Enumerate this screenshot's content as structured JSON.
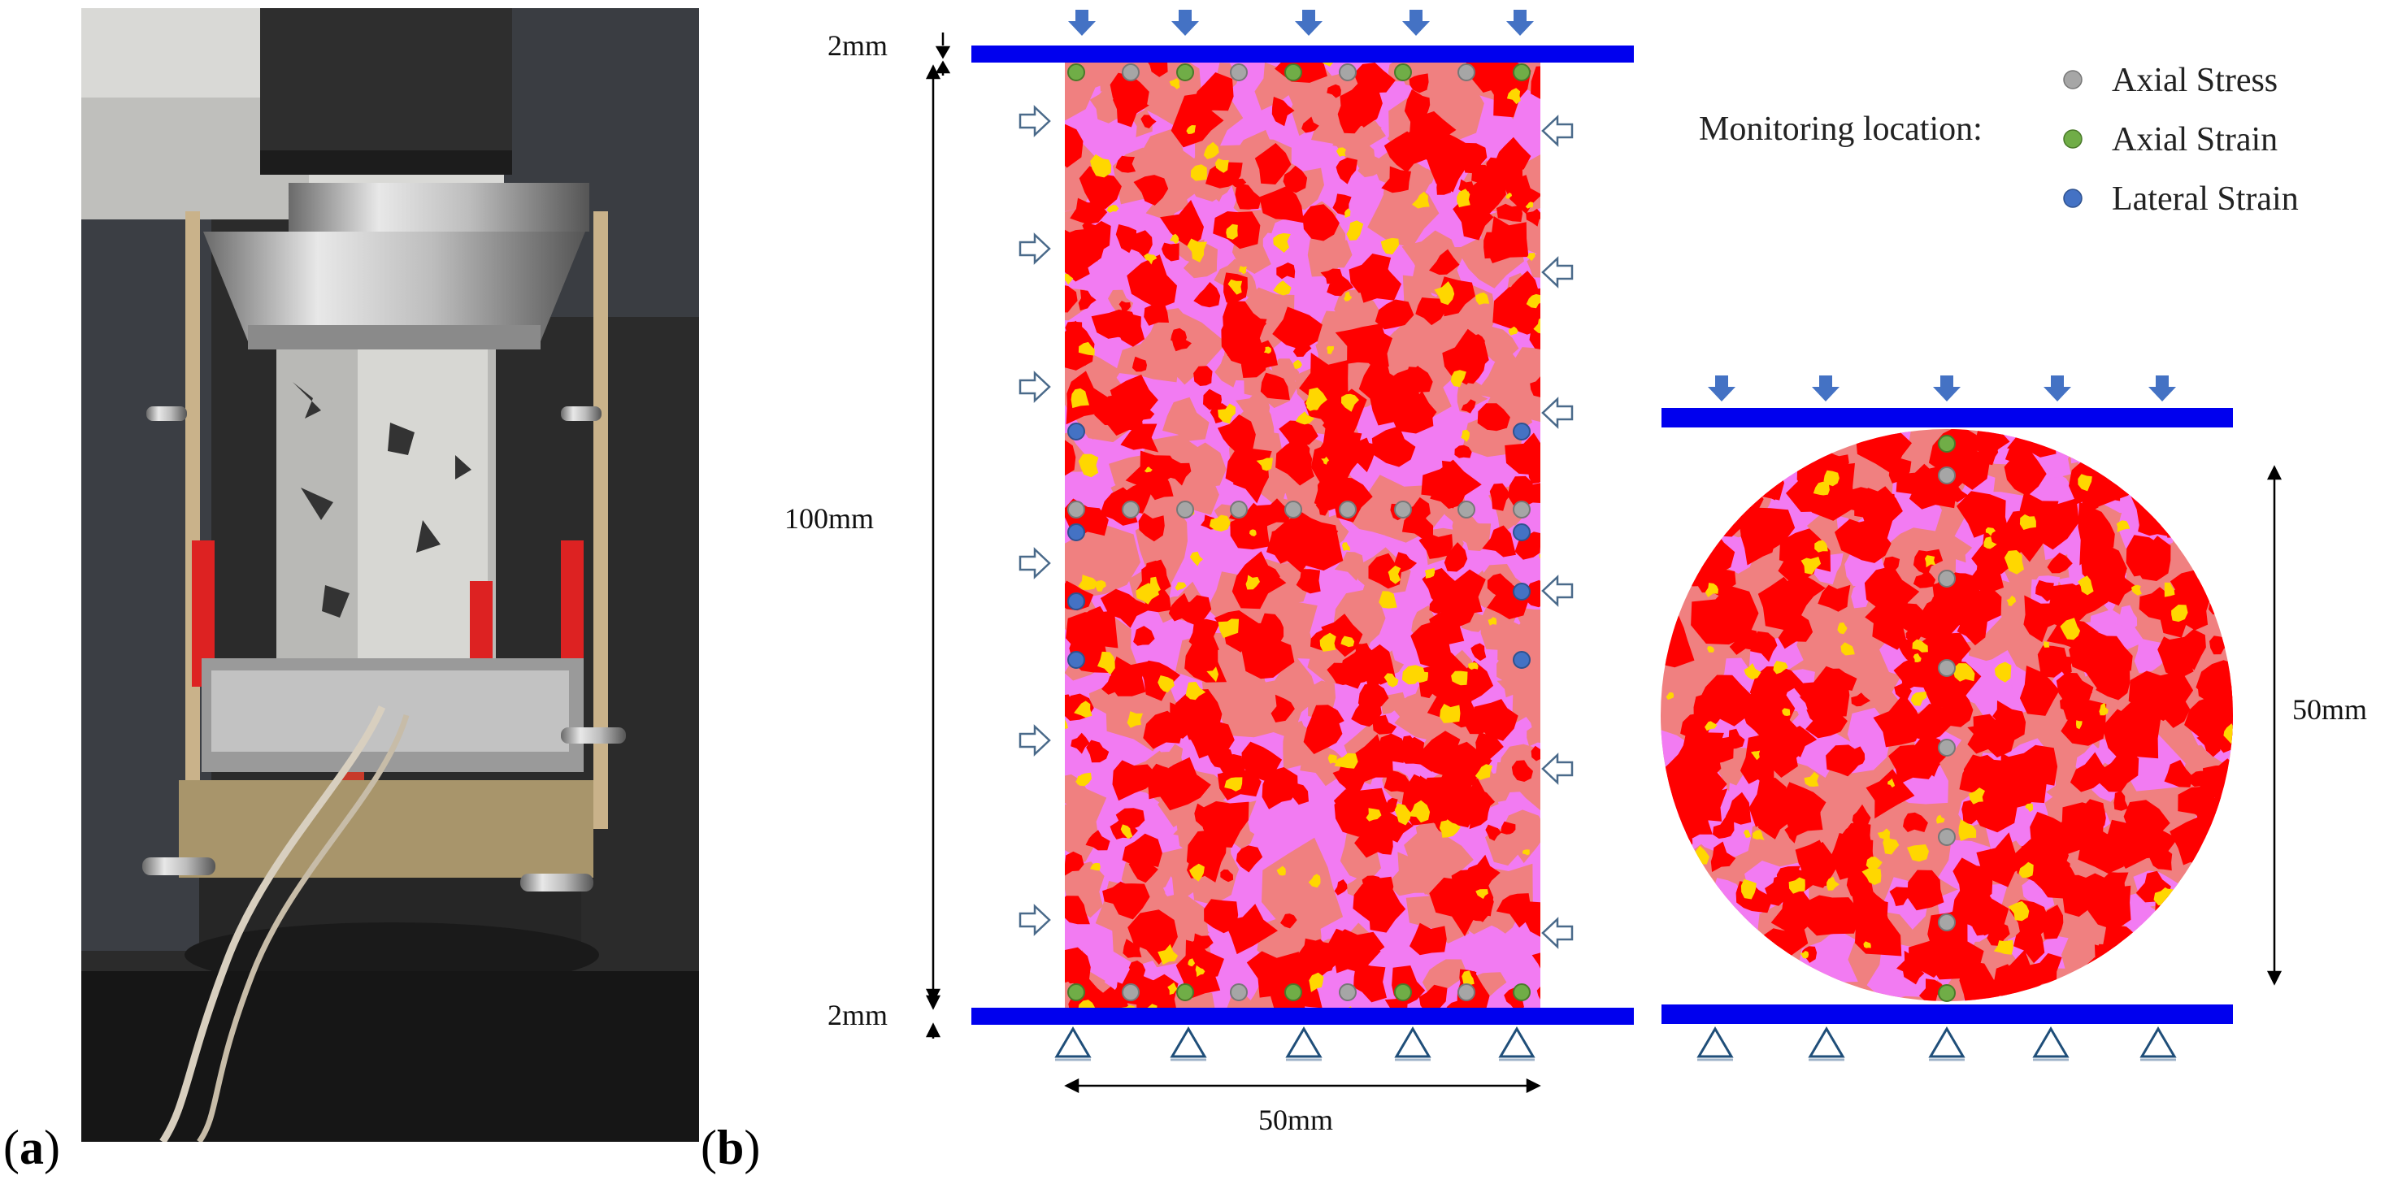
{
  "panels": {
    "a": {
      "open": "(",
      "letter": "a",
      "close": ")"
    },
    "b": {
      "open": "(",
      "letter": "b",
      "close": ")"
    }
  },
  "dimensions": {
    "platen_top": "2mm",
    "platen_bottom": "2mm",
    "height_100": "100mm",
    "width_50": "50mm",
    "disc_diameter": "50mm"
  },
  "legend": {
    "title": "Monitoring location:",
    "items": [
      {
        "label": "Axial Stress",
        "color": "#a6a6a6"
      },
      {
        "label": "Axial Strain",
        "color": "#70ad47"
      },
      {
        "label": "Lateral Strain",
        "color": "#4472c4"
      }
    ]
  },
  "colors": {
    "platen": "#0000ee",
    "load_arrow": "#4472c4",
    "specimen_pink": "#f27bf2",
    "specimen_salmon": "#f08080",
    "specimen_red": "#ff0000",
    "specimen_yellow": "#ffd700",
    "support_triangle": "#1f4e79"
  },
  "icons": {
    "load_arrow": "down-arrow-icon",
    "confining_arrow": "hollow-arrow-icon",
    "support": "roller-support-triangle-icon"
  }
}
